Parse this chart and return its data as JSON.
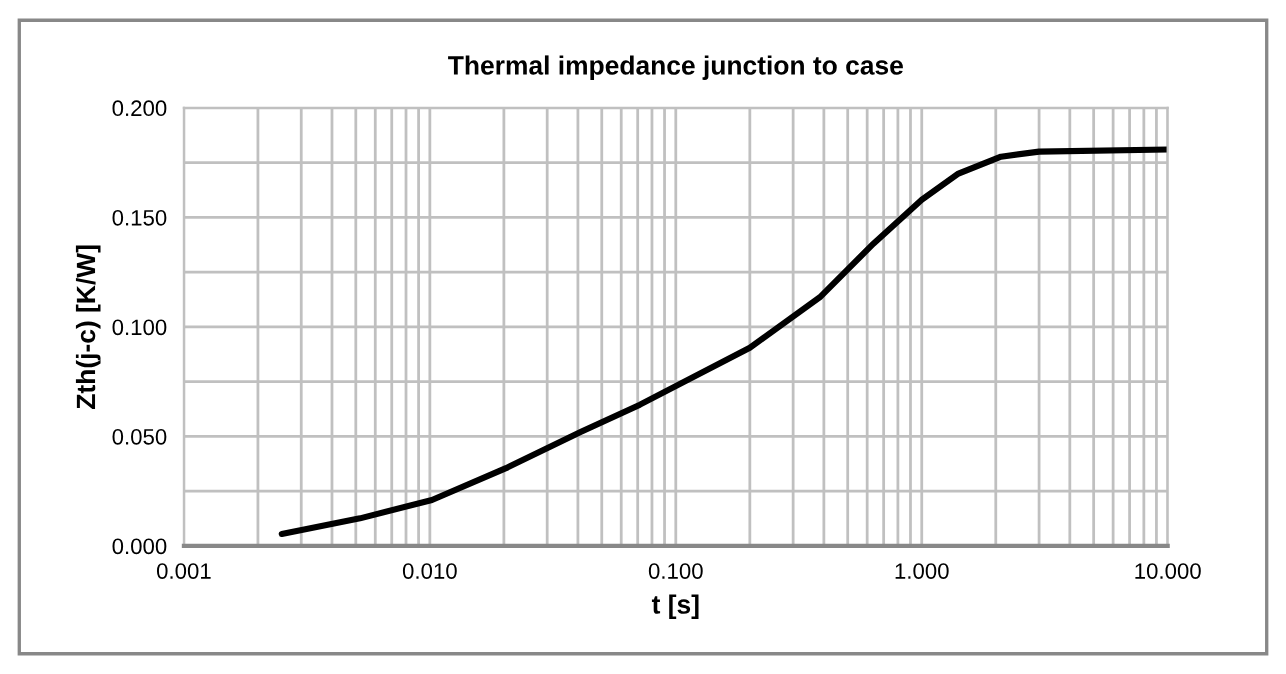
{
  "chart_data": {
    "type": "line",
    "title": "Thermal impedance junction to case",
    "xlabel": "t [s]",
    "ylabel": "Zth(j-c) [K/W]",
    "log": "x",
    "grid": true,
    "legend": false,
    "marker": "none",
    "line_style": "solid",
    "xlim": [
      0.001,
      10
    ],
    "ylim": [
      0,
      0.2
    ],
    "xticks": [
      {
        "value": 0.001,
        "label": "0.001"
      },
      {
        "value": 0.002,
        "label": null
      },
      {
        "value": 0.003,
        "label": null
      },
      {
        "value": 0.004,
        "label": null
      },
      {
        "value": 0.005,
        "label": null
      },
      {
        "value": 0.006,
        "label": null
      },
      {
        "value": 0.007,
        "label": null
      },
      {
        "value": 0.008,
        "label": null
      },
      {
        "value": 0.009,
        "label": null
      },
      {
        "value": 0.01,
        "label": "0.010"
      },
      {
        "value": 0.02,
        "label": null
      },
      {
        "value": 0.03,
        "label": null
      },
      {
        "value": 0.04,
        "label": null
      },
      {
        "value": 0.05,
        "label": null
      },
      {
        "value": 0.06,
        "label": null
      },
      {
        "value": 0.07,
        "label": null
      },
      {
        "value": 0.08,
        "label": null
      },
      {
        "value": 0.09,
        "label": null
      },
      {
        "value": 0.1,
        "label": "0.100"
      },
      {
        "value": 0.2,
        "label": null
      },
      {
        "value": 0.3,
        "label": null
      },
      {
        "value": 0.4,
        "label": null
      },
      {
        "value": 0.5,
        "label": null
      },
      {
        "value": 0.6,
        "label": null
      },
      {
        "value": 0.7,
        "label": null
      },
      {
        "value": 0.8,
        "label": null
      },
      {
        "value": 0.9,
        "label": null
      },
      {
        "value": 1,
        "label": "1.000"
      },
      {
        "value": 2,
        "label": null
      },
      {
        "value": 3,
        "label": null
      },
      {
        "value": 4,
        "label": null
      },
      {
        "value": 5,
        "label": null
      },
      {
        "value": 6,
        "label": null
      },
      {
        "value": 7,
        "label": null
      },
      {
        "value": 8,
        "label": null
      },
      {
        "value": 9,
        "label": null
      },
      {
        "value": 10,
        "label": "10.000"
      }
    ],
    "yticks": [
      {
        "value": 0,
        "label": "0.000"
      },
      {
        "value": 0.025,
        "label": null
      },
      {
        "value": 0.05,
        "label": "0.050"
      },
      {
        "value": 0.075,
        "label": null
      },
      {
        "value": 0.1,
        "label": "0.100"
      },
      {
        "value": 0.125,
        "label": null
      },
      {
        "value": 0.15,
        "label": "0.150"
      },
      {
        "value": 0.175,
        "label": null
      },
      {
        "value": 0.2,
        "label": "0.200"
      }
    ],
    "series": [
      {
        "color": "#000000",
        "x": [
          0.0025,
          0.0052,
          0.0102,
          0.0204,
          0.041,
          0.0715,
          0.2,
          0.385,
          0.636,
          1.0,
          1.41,
          2.1,
          3.0,
          10
        ],
        "values": [
          0.0055,
          0.0126,
          0.021,
          0.0355,
          0.052,
          0.0645,
          0.0905,
          0.1135,
          0.138,
          0.158,
          0.17,
          0.1777,
          0.18,
          0.181
        ]
      }
    ]
  }
}
